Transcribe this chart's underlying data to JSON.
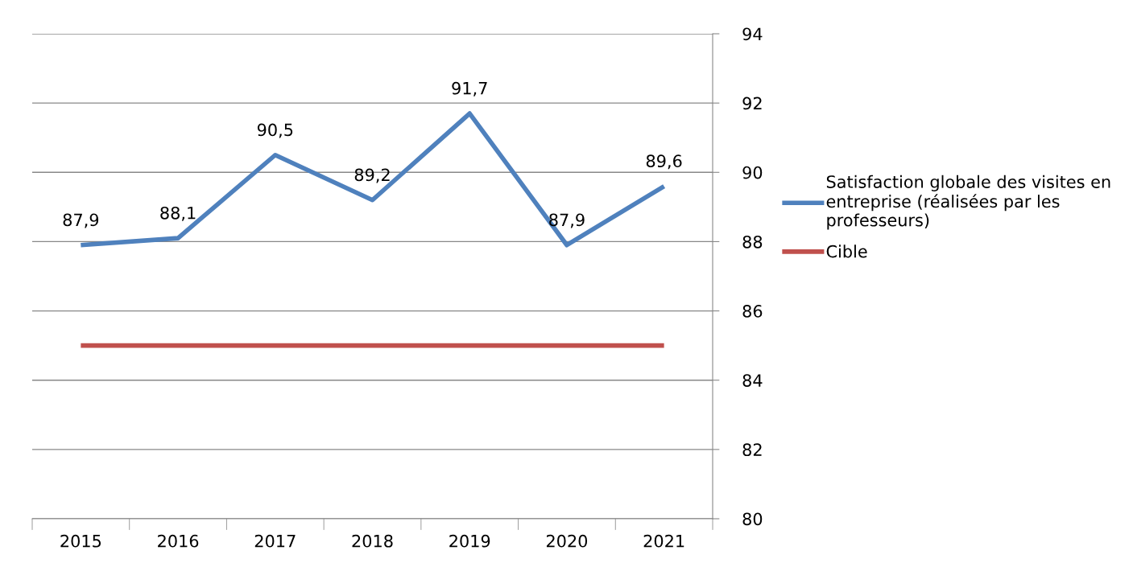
{
  "chart_data": {
    "type": "line",
    "categories": [
      "2015",
      "2016",
      "2017",
      "2018",
      "2019",
      "2020",
      "2021"
    ],
    "series": [
      {
        "name": "Satisfaction globale des visites en\nentreprise (réalisées par les\nprofesseurs)",
        "color": "#4f81bd",
        "values": [
          87.9,
          88.1,
          90.5,
          89.2,
          91.7,
          87.9,
          89.6
        ],
        "value_labels": [
          "87,9",
          "88,1",
          "90,5",
          "89,2",
          "91,7",
          "87,9",
          "89,6"
        ]
      },
      {
        "name": "Cible",
        "color": "#c0504d",
        "values": [
          85,
          85,
          85,
          85,
          85,
          85,
          85
        ]
      }
    ],
    "ylim": [
      80,
      94
    ],
    "yticks": [
      80,
      82,
      84,
      86,
      88,
      90,
      92,
      94
    ],
    "grid": "y",
    "legend": "right",
    "marker": "none",
    "line_style": "solid"
  }
}
